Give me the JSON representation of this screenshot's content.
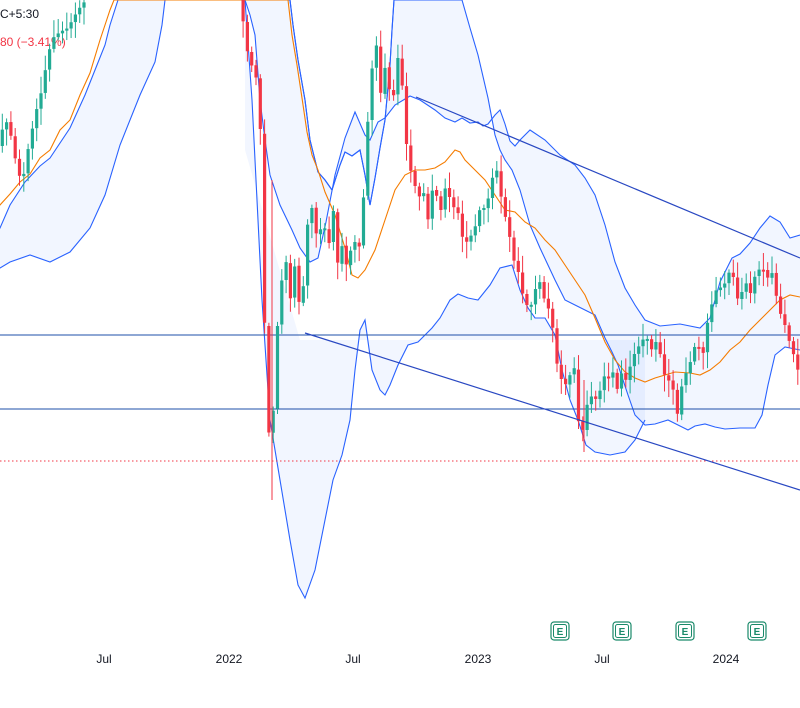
{
  "header": {
    "timezone_fragment": "C+5:30",
    "change_fragment": "80 (−3.41%)"
  },
  "colors": {
    "up": "#22ab94",
    "down": "#f23645",
    "bb_band": "#2962ff",
    "bb_fill": "#2962ff",
    "bb_basis": "#f57c00",
    "trendline": "#2948c2",
    "hline": "#1e4fa8",
    "price_line": "#f23645",
    "earnings": "#1a8a6a"
  },
  "chart_data": {
    "type": "candlestick",
    "x_tick_labels": [
      "Jul",
      "2022",
      "Jul",
      "2023",
      "Jul",
      "2024"
    ],
    "earnings_markers": [
      {
        "date": "2023-06",
        "label": "E"
      },
      {
        "date": "2023-08",
        "label": "E"
      },
      {
        "date": "2023-11",
        "label": "E"
      },
      {
        "date": "2024-02",
        "label": "E"
      }
    ],
    "indicators": [
      "Bollinger Bands (upper, lower, basis)"
    ],
    "drawings": [
      {
        "kind": "descending channel upper trendline"
      },
      {
        "kind": "descending channel lower trendline"
      },
      {
        "kind": "horizontal line"
      },
      {
        "kind": "horizontal line"
      },
      {
        "kind": "last price dotted line"
      }
    ]
  }
}
